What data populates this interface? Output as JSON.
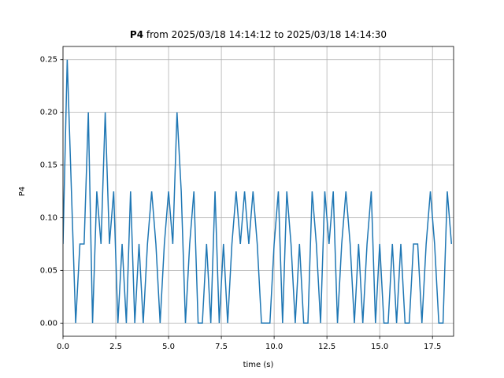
{
  "chart_data": {
    "type": "line",
    "title_bold": "P4",
    "title_rest": "from 2025/03/18 14:14:12 to 2025/03/18 14:14:30",
    "xlabel": "time (s)",
    "ylabel": "P4",
    "color": "#1f77b4",
    "grid": true,
    "xlim": [
      0,
      18.5
    ],
    "ylim": [
      -0.0125,
      0.2625
    ],
    "xticks": [
      {
        "value": 0,
        "label": "0.0"
      },
      2.5,
      {
        "value": 5,
        "label": "5.0"
      },
      7.5,
      {
        "value": 10,
        "label": "10.0"
      },
      12.5,
      {
        "value": 15,
        "label": "15.0"
      },
      17.5
    ],
    "yticks": [
      {
        "value": 0,
        "label": "0.00"
      },
      {
        "value": 0.05,
        "label": "0.05"
      },
      {
        "value": 0.1,
        "label": "0.10"
      },
      {
        "value": 0.15,
        "label": "0.15"
      },
      {
        "value": 0.2,
        "label": "0.20"
      },
      {
        "value": 0.25,
        "label": "0.25"
      }
    ],
    "x": [
      0,
      0.2,
      0.4,
      0.6,
      0.8,
      1,
      1.2,
      1.4,
      1.6,
      1.8,
      2,
      2.2,
      2.4,
      2.6,
      2.8,
      3,
      3.2,
      3.4,
      3.6,
      3.8,
      4,
      4.2,
      4.4,
      4.6,
      4.8,
      5,
      5.2,
      5.4,
      5.6,
      5.8,
      6,
      6.2,
      6.4,
      6.6,
      6.8,
      7,
      7.2,
      7.4,
      7.6,
      7.8,
      8,
      8.2,
      8.4,
      8.6,
      8.8,
      9,
      9.2,
      9.4,
      9.6,
      9.8,
      10,
      10.2,
      10.4,
      10.6,
      10.8,
      11,
      11.2,
      11.4,
      11.6,
      11.8,
      12,
      12.2,
      12.4,
      12.6,
      12.8,
      13,
      13.2,
      13.4,
      13.6,
      13.8,
      14,
      14.2,
      14.4,
      14.6,
      14.8,
      15,
      15.2,
      15.4,
      15.6,
      15.8,
      16,
      16.2,
      16.4,
      16.6,
      16.8,
      17,
      17.2,
      17.4,
      17.6,
      17.8,
      18,
      18.2,
      18.4
    ],
    "values": [
      0.075,
      0.25,
      0.125,
      0,
      0.075,
      0.075,
      0.2,
      0,
      0.125,
      0.075,
      0.2,
      0.075,
      0.125,
      0,
      0.075,
      0,
      0.125,
      0,
      0.075,
      0,
      0.075,
      0.125,
      0.075,
      0,
      0.075,
      0.125,
      0.075,
      0.2,
      0.125,
      0,
      0.075,
      0.125,
      0,
      0,
      0.075,
      0,
      0.125,
      0,
      0.075,
      0,
      0.075,
      0.125,
      0.075,
      0.125,
      0.075,
      0.125,
      0.075,
      0,
      0,
      0,
      0.075,
      0.125,
      0,
      0.125,
      0.075,
      0,
      0.075,
      0,
      0,
      0.125,
      0.075,
      0,
      0.125,
      0.075,
      0.125,
      0,
      0.075,
      0.125,
      0.075,
      0,
      0.075,
      0,
      0.075,
      0.125,
      0,
      0.075,
      0,
      0,
      0.075,
      0,
      0.075,
      0,
      0,
      0.075,
      0.075,
      0,
      0.075,
      0.125,
      0.075,
      0,
      0,
      0.125,
      0.075
    ]
  }
}
